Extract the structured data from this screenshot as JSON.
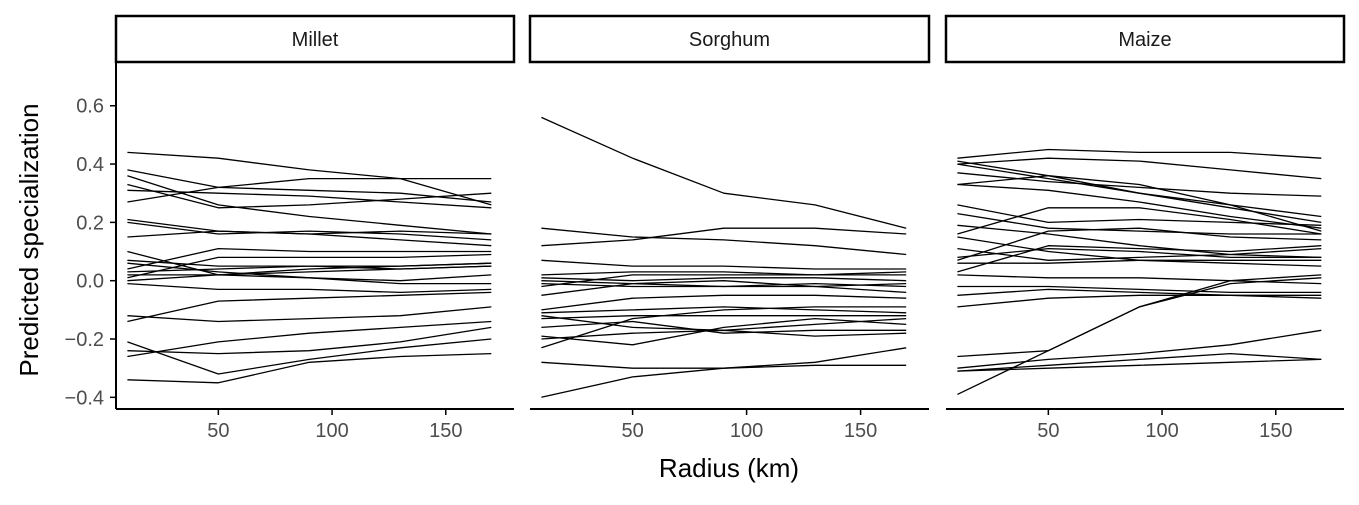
{
  "chart_data": {
    "type": "line",
    "ylabel": "Predicted specialization",
    "xlabel": "Radius (km)",
    "xlim": [
      5,
      180
    ],
    "ylim": [
      -0.44,
      0.75
    ],
    "xticks": [
      50,
      100,
      150
    ],
    "xtick_labels": [
      "50",
      "100",
      "150"
    ],
    "yticks": [
      -0.4,
      -0.2,
      0.0,
      0.2,
      0.4,
      0.6
    ],
    "ytick_labels": [
      "−0.4",
      "−0.2",
      "0.0",
      "0.2",
      "0.4",
      "0.6"
    ],
    "grid": false,
    "x": [
      10,
      50,
      90,
      130,
      170
    ],
    "line_color": "#000000",
    "facets": [
      {
        "label": "Millet",
        "series": [
          {
            "values": [
              0.44,
              0.42,
              0.38,
              0.35,
              0.35
            ]
          },
          {
            "values": [
              0.38,
              0.32,
              0.31,
              0.3,
              0.27
            ]
          },
          {
            "values": [
              0.36,
              0.26,
              0.22,
              0.19,
              0.16
            ]
          },
          {
            "values": [
              0.33,
              0.25,
              0.26,
              0.28,
              0.3
            ]
          },
          {
            "values": [
              0.31,
              0.3,
              0.29,
              0.27,
              0.25
            ]
          },
          {
            "values": [
              0.27,
              0.32,
              0.35,
              0.35,
              0.26
            ]
          },
          {
            "values": [
              0.21,
              0.17,
              0.16,
              0.17,
              0.16
            ]
          },
          {
            "values": [
              0.2,
              0.16,
              0.17,
              0.16,
              0.14
            ]
          },
          {
            "values": [
              0.15,
              0.17,
              0.16,
              0.14,
              0.12
            ]
          },
          {
            "values": [
              0.1,
              0.02,
              0.04,
              0.05,
              0.06
            ]
          },
          {
            "values": [
              0.07,
              0.05,
              0.05,
              0.04,
              0.05
            ]
          },
          {
            "values": [
              0.06,
              0.03,
              0.01,
              -0.01,
              -0.01
            ]
          },
          {
            "values": [
              0.04,
              0.11,
              0.1,
              0.1,
              0.1
            ]
          },
          {
            "values": [
              0.03,
              0.04,
              0.05,
              0.05,
              0.06
            ]
          },
          {
            "values": [
              0.02,
              0.02,
              0.03,
              0.04,
              0.05
            ]
          },
          {
            "values": [
              0.01,
              0.08,
              0.08,
              0.08,
              0.09
            ]
          },
          {
            "values": [
              0.0,
              0.02,
              0.01,
              0.0,
              0.02
            ]
          },
          {
            "values": [
              -0.01,
              -0.03,
              -0.03,
              -0.04,
              -0.03
            ]
          },
          {
            "values": [
              -0.12,
              -0.14,
              -0.13,
              -0.12,
              -0.09
            ]
          },
          {
            "values": [
              -0.14,
              -0.07,
              -0.06,
              -0.05,
              -0.04
            ]
          },
          {
            "values": [
              -0.21,
              -0.32,
              -0.27,
              -0.23,
              -0.2
            ]
          },
          {
            "values": [
              -0.24,
              -0.25,
              -0.24,
              -0.21,
              -0.16
            ]
          },
          {
            "values": [
              -0.26,
              -0.21,
              -0.18,
              -0.16,
              -0.14
            ]
          },
          {
            "values": [
              -0.34,
              -0.35,
              -0.28,
              -0.26,
              -0.25
            ]
          }
        ]
      },
      {
        "label": "Sorghum",
        "series": [
          {
            "values": [
              0.56,
              0.42,
              0.3,
              0.26,
              0.18
            ]
          },
          {
            "values": [
              0.18,
              0.15,
              0.14,
              0.12,
              0.09
            ]
          },
          {
            "values": [
              0.12,
              0.14,
              0.18,
              0.18,
              0.16
            ]
          },
          {
            "values": [
              0.07,
              0.05,
              0.05,
              0.04,
              0.04
            ]
          },
          {
            "values": [
              0.02,
              0.03,
              0.03,
              0.02,
              0.02
            ]
          },
          {
            "values": [
              0.01,
              0.0,
              0.01,
              0.01,
              0.0
            ]
          },
          {
            "values": [
              0.0,
              -0.01,
              -0.02,
              -0.01,
              -0.02
            ]
          },
          {
            "values": [
              -0.01,
              -0.02,
              -0.02,
              -0.02,
              -0.04
            ]
          },
          {
            "values": [
              -0.02,
              0.02,
              0.02,
              0.02,
              0.03
            ]
          },
          {
            "values": [
              -0.05,
              -0.01,
              0.0,
              -0.02,
              -0.01
            ]
          },
          {
            "values": [
              -0.1,
              -0.06,
              -0.05,
              -0.05,
              -0.06
            ]
          },
          {
            "values": [
              -0.11,
              -0.1,
              -0.09,
              -0.1,
              -0.11
            ]
          },
          {
            "values": [
              -0.12,
              -0.16,
              -0.17,
              -0.15,
              -0.13
            ]
          },
          {
            "values": [
              -0.13,
              -0.12,
              -0.12,
              -0.12,
              -0.12
            ]
          },
          {
            "values": [
              -0.16,
              -0.14,
              -0.18,
              -0.17,
              -0.17
            ]
          },
          {
            "values": [
              -0.19,
              -0.22,
              -0.16,
              -0.13,
              -0.15
            ]
          },
          {
            "values": [
              -0.2,
              -0.18,
              -0.17,
              -0.19,
              -0.18
            ]
          },
          {
            "values": [
              -0.23,
              -0.13,
              -0.1,
              -0.09,
              -0.09
            ]
          },
          {
            "values": [
              -0.28,
              -0.3,
              -0.3,
              -0.29,
              -0.29
            ]
          },
          {
            "values": [
              -0.4,
              -0.33,
              -0.3,
              -0.28,
              -0.23
            ]
          }
        ]
      },
      {
        "label": "Maize",
        "series": [
          {
            "values": [
              0.42,
              0.45,
              0.44,
              0.44,
              0.42
            ]
          },
          {
            "values": [
              0.41,
              0.36,
              0.3,
              0.25,
              0.2
            ]
          },
          {
            "values": [
              0.4,
              0.35,
              0.3,
              0.26,
              0.17
            ]
          },
          {
            "values": [
              0.4,
              0.42,
              0.41,
              0.38,
              0.35
            ]
          },
          {
            "values": [
              0.37,
              0.34,
              0.32,
              0.3,
              0.29
            ]
          },
          {
            "values": [
              0.33,
              0.36,
              0.33,
              0.26,
              0.22
            ]
          },
          {
            "values": [
              0.33,
              0.31,
              0.27,
              0.22,
              0.18
            ]
          },
          {
            "values": [
              0.26,
              0.2,
              0.21,
              0.2,
              0.19
            ]
          },
          {
            "values": [
              0.23,
              0.18,
              0.17,
              0.16,
              0.16
            ]
          },
          {
            "values": [
              0.19,
              0.16,
              0.12,
              0.09,
              0.08
            ]
          },
          {
            "values": [
              0.16,
              0.25,
              0.25,
              0.21,
              0.16
            ]
          },
          {
            "values": [
              0.15,
              0.1,
              0.07,
              0.06,
              0.05
            ]
          },
          {
            "values": [
              0.11,
              0.07,
              0.08,
              0.09,
              0.11
            ]
          },
          {
            "values": [
              0.08,
              0.11,
              0.1,
              0.08,
              0.08
            ]
          },
          {
            "values": [
              0.07,
              0.17,
              0.18,
              0.15,
              0.14
            ]
          },
          {
            "values": [
              0.06,
              0.06,
              0.07,
              0.07,
              0.07
            ]
          },
          {
            "values": [
              0.03,
              0.12,
              0.11,
              0.1,
              0.12
            ]
          },
          {
            "values": [
              0.02,
              0.01,
              0.01,
              0.0,
              -0.01
            ]
          },
          {
            "values": [
              -0.02,
              -0.02,
              -0.03,
              -0.04,
              -0.04
            ]
          },
          {
            "values": [
              -0.05,
              -0.03,
              -0.04,
              -0.05,
              -0.05
            ]
          },
          {
            "values": [
              -0.09,
              -0.06,
              -0.05,
              -0.05,
              -0.06
            ]
          },
          {
            "values": [
              -0.26,
              -0.24,
              -0.09,
              0.0,
              0.02
            ]
          },
          {
            "values": [
              -0.3,
              -0.27,
              -0.25,
              -0.22,
              -0.17
            ]
          },
          {
            "values": [
              -0.31,
              -0.29,
              -0.27,
              -0.25,
              -0.27
            ]
          },
          {
            "values": [
              -0.31,
              -0.3,
              -0.29,
              -0.28,
              -0.27
            ]
          },
          {
            "values": [
              -0.39,
              -0.24,
              -0.09,
              -0.01,
              0.01
            ]
          }
        ]
      }
    ]
  }
}
